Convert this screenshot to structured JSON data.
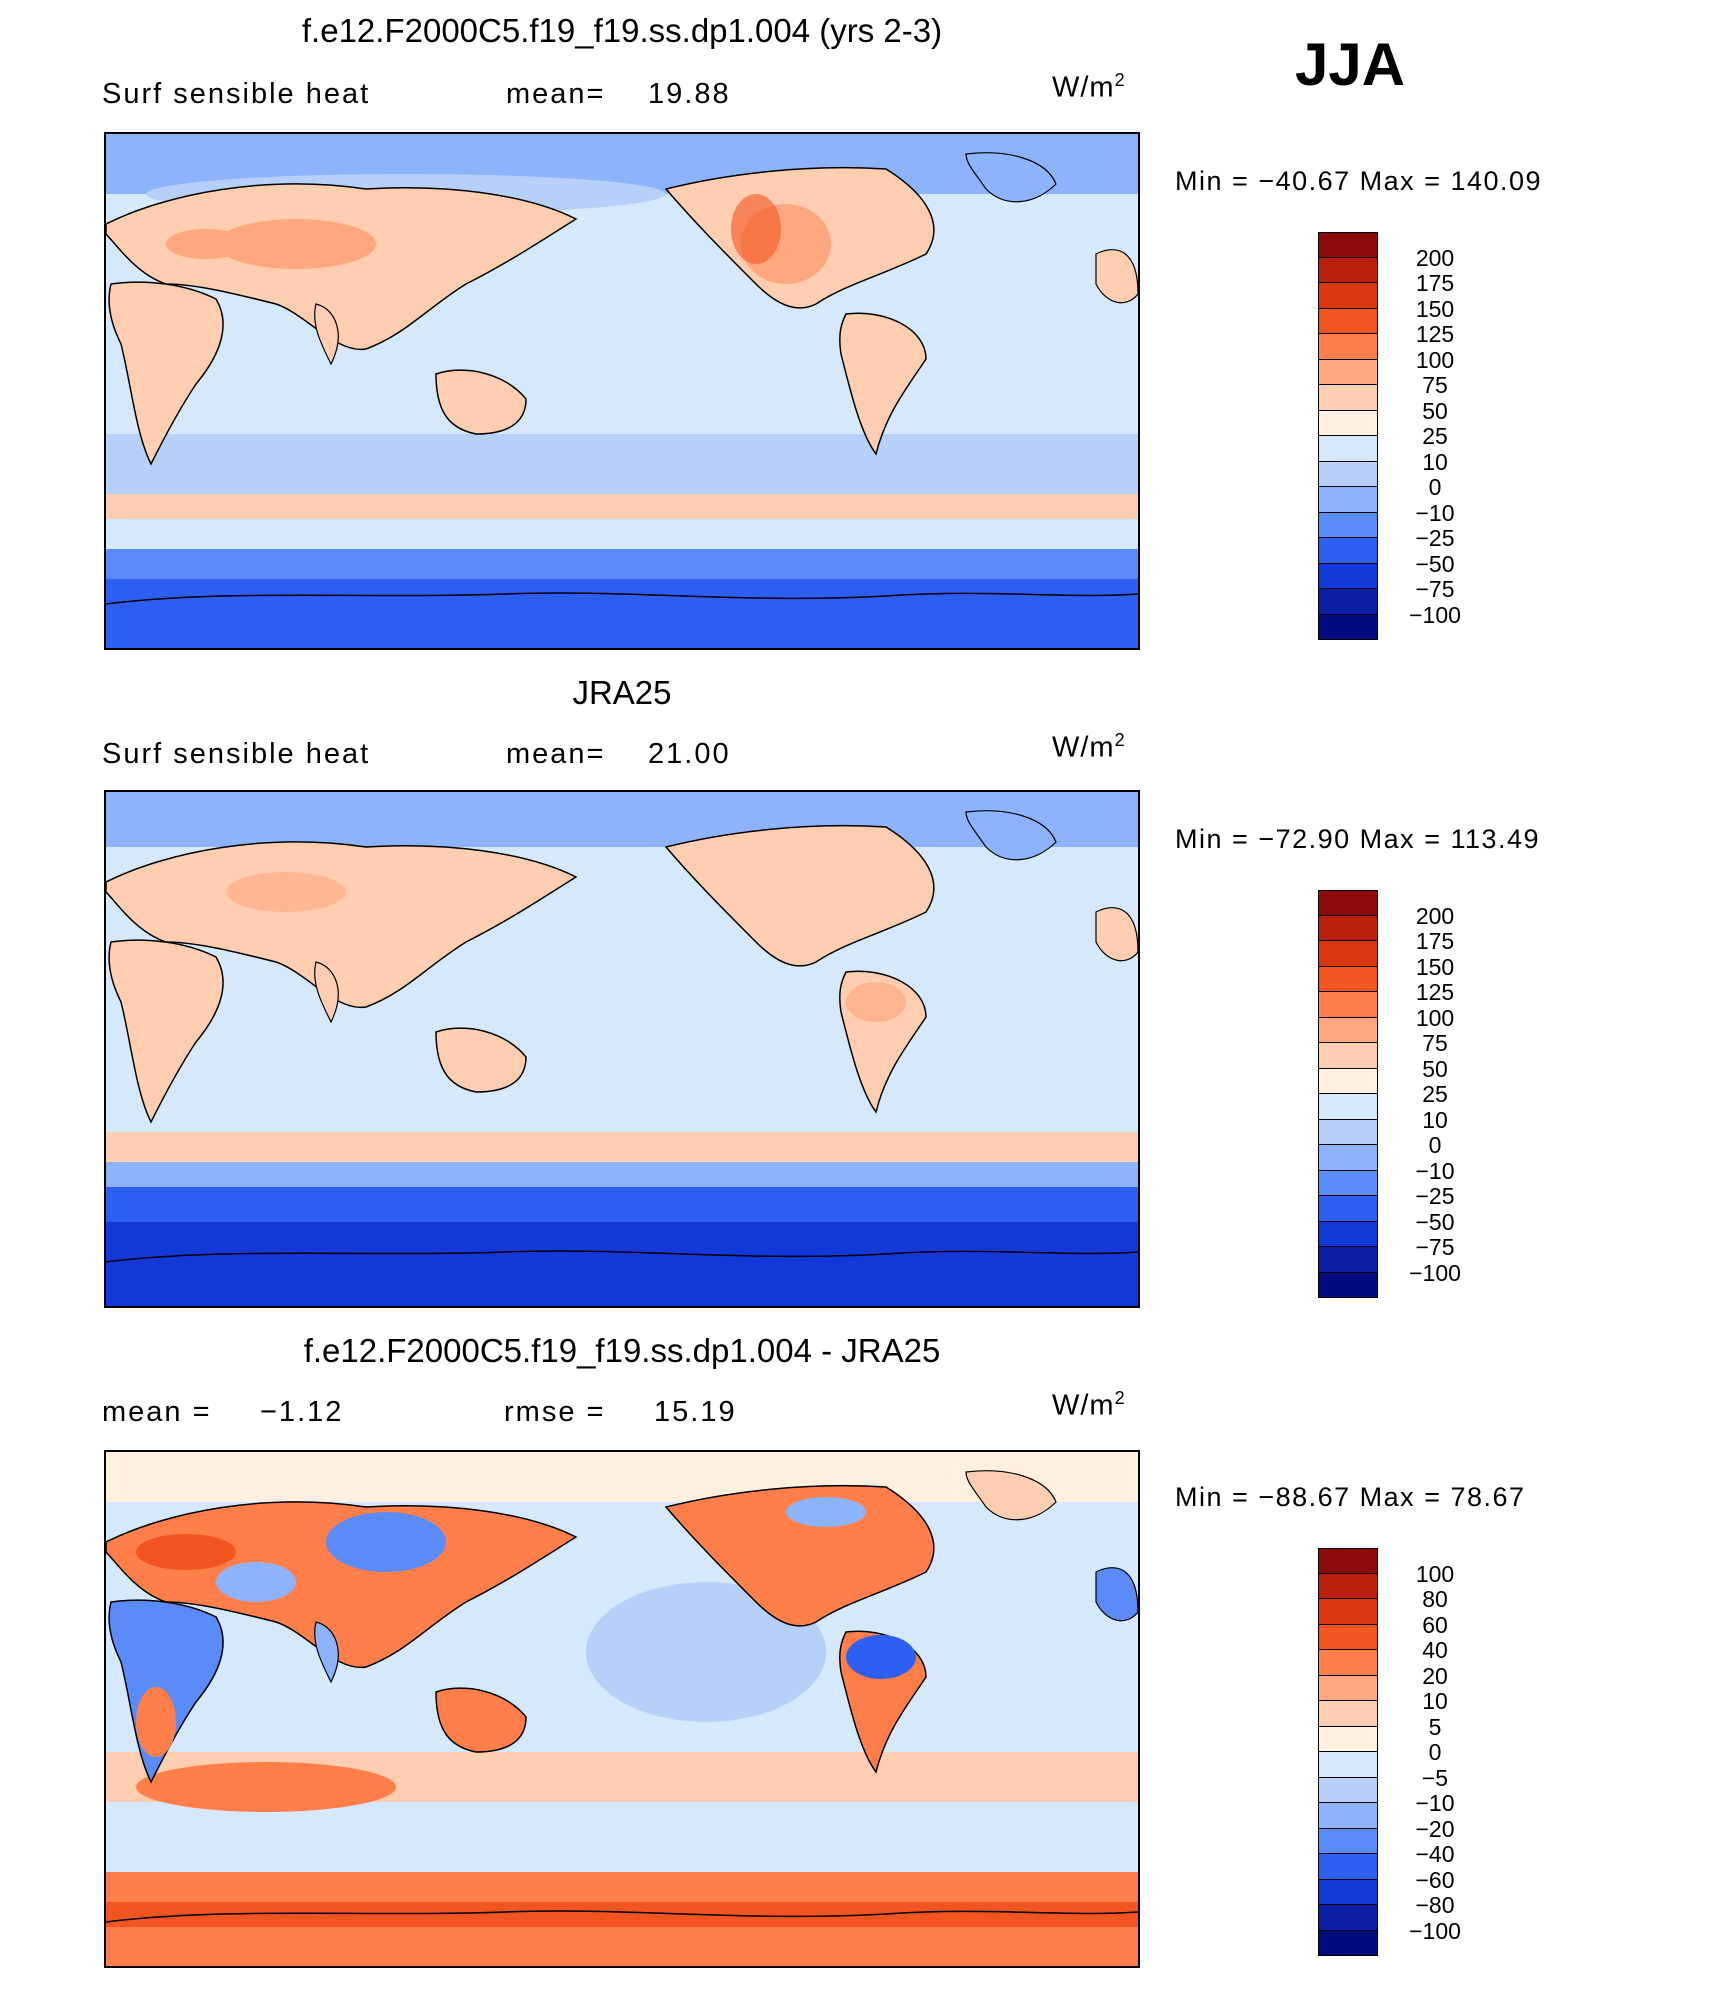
{
  "season": "JJA",
  "units_text": "W/m",
  "units_sup": "2",
  "panels": [
    {
      "title": "f.e12.F2000C5.f19_f19.ss.dp1.004 (yrs 2-3)",
      "left_label": "Surf sensible heat",
      "stat_label": "mean=",
      "stat_value": "19.88",
      "min_label": "Min",
      "min_value": "−40.67",
      "max_label": "Max",
      "max_value": "140.09",
      "levels": [
        "200",
        "175",
        "150",
        "125",
        "100",
        "75",
        "50",
        "25",
        "10",
        "0",
        "−10",
        "−25",
        "−50",
        "−75",
        "−100"
      ]
    },
    {
      "title": "JRA25",
      "left_label": "Surf sensible heat",
      "stat_label": "mean=",
      "stat_value": "21.00",
      "min_label": "Min",
      "min_value": "−72.90",
      "max_label": "Max",
      "max_value": "113.49",
      "levels": [
        "200",
        "175",
        "150",
        "125",
        "100",
        "75",
        "50",
        "25",
        "10",
        "0",
        "−10",
        "−25",
        "−50",
        "−75",
        "−100"
      ]
    },
    {
      "title": "f.e12.F2000C5.f19_f19.ss.dp1.004 - JRA25",
      "left_label": "mean =",
      "left_value": "−1.12",
      "stat_label": "rmse =",
      "stat_value": "15.19",
      "min_label": "Min",
      "min_value": "−88.67",
      "max_label": "Max",
      "max_value": "78.67",
      "levels": [
        "100",
        "80",
        "60",
        "40",
        "20",
        "10",
        "5",
        "0",
        "−5",
        "−10",
        "−20",
        "−40",
        "−60",
        "−80",
        "−100"
      ]
    }
  ],
  "colorbar_colors": [
    "#8b0a0a",
    "#b8200a",
    "#d9380e",
    "#f25520",
    "#ff7e4a",
    "#ffa880",
    "#ffcdb0",
    "#fff0e0",
    "#d6e8fb",
    "#b6d0fa",
    "#8cb3fb",
    "#5a8bf8",
    "#2d5ff2",
    "#1238d8",
    "#0a1ea6",
    "#000c7e"
  ],
  "colors": {
    "ocean_mid": "#d6e8fb",
    "ocean_south": "#b6d0fa",
    "antarctic": "#2d5ff2",
    "land_warm": "#ffcdb0",
    "land_hot": "#f25520",
    "land_cool": "#8cb3fb"
  }
}
